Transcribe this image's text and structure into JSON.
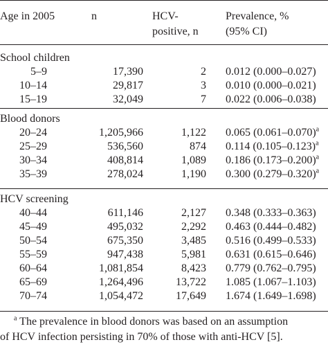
{
  "header": {
    "age": "Age in 2005",
    "n": "n",
    "hcv_line1": "HCV-",
    "hcv_line2": "positive, n",
    "prev_line1": "Prevalence, %",
    "prev_line2": "(95% CI)"
  },
  "groups": [
    {
      "title": "School children",
      "rows": [
        {
          "age": "5–9",
          "n": "17,390",
          "hcv": "2",
          "prev": "0.012 (0.000–0.027)",
          "sup": ""
        },
        {
          "age": "10–14",
          "n": "29,817",
          "hcv": "3",
          "prev": "0.010 (0.000–0.021)",
          "sup": ""
        },
        {
          "age": "15–19",
          "n": "32,049",
          "hcv": "7",
          "prev": "0.022 (0.006–0.038)",
          "sup": ""
        }
      ]
    },
    {
      "title": "Blood donors",
      "rows": [
        {
          "age": "20–24",
          "n": "1,205,966",
          "hcv": "1,122",
          "prev": "0.065 (0.061–0.070)",
          "sup": "a"
        },
        {
          "age": "25–29",
          "n": "536,560",
          "hcv": "874",
          "prev": "0.114 (0.105–0.123)",
          "sup": "a"
        },
        {
          "age": "30–34",
          "n": "408,814",
          "hcv": "1,089",
          "prev": "0.186 (0.173–0.200)",
          "sup": "a"
        },
        {
          "age": "35–39",
          "n": "278,024",
          "hcv": "1,190",
          "prev": "0.300 (0.279–0.320)",
          "sup": "a"
        }
      ]
    },
    {
      "title": "HCV screening",
      "rows": [
        {
          "age": "40–44",
          "n": "611,146",
          "hcv": "2,127",
          "prev": "0.348 (0.333–0.363)",
          "sup": ""
        },
        {
          "age": "45–49",
          "n": "495,032",
          "hcv": "2,292",
          "prev": "0.463 (0.444–0.482)",
          "sup": ""
        },
        {
          "age": "50–54",
          "n": "675,350",
          "hcv": "3,485",
          "prev": "0.516 (0.499–0.533)",
          "sup": ""
        },
        {
          "age": "55–59",
          "n": "947,438",
          "hcv": "5,981",
          "prev": "0.631 (0.615–0.646)",
          "sup": ""
        },
        {
          "age": "60–64",
          "n": "1,081,854",
          "hcv": "8,423",
          "prev": "0.779 (0.762–0.795)",
          "sup": ""
        },
        {
          "age": "65–69",
          "n": "1,264,496",
          "hcv": "13,722",
          "prev": "1.085 (1.067–1.103)",
          "sup": ""
        },
        {
          "age": "70–74",
          "n": "1,054,472",
          "hcv": "17,649",
          "prev": "1.674 (1.649–1.698)",
          "sup": ""
        }
      ]
    }
  ],
  "footnote": {
    "mark": "a",
    "line1": "The prevalence in blood donors was based on an assumption",
    "line2": "of HCV infection persisting in 70% of those with anti-HCV [5]."
  }
}
